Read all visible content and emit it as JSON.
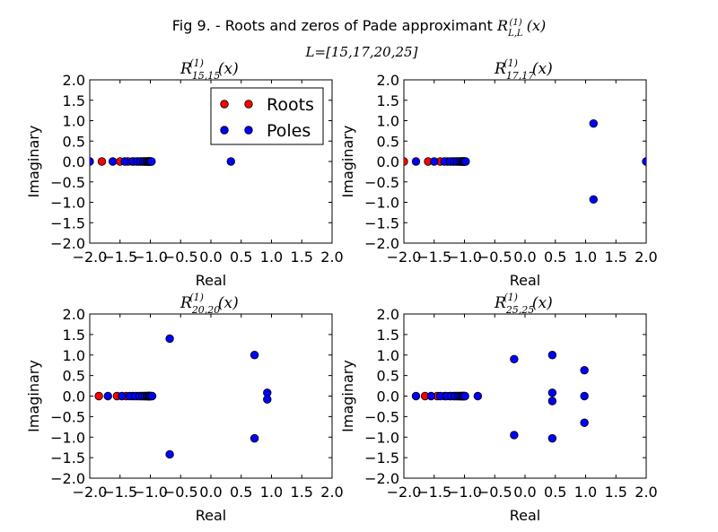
{
  "figure": {
    "title": "Fig 9. - Roots and zeros of Pade approximant R_{L,L}^{(1)}(x)",
    "subtitle": "L=[15,17,20,25]"
  },
  "colors": {
    "roots": "#ff0000",
    "poles": "#0000ff",
    "axis": "#000000"
  },
  "chart_data": [
    {
      "type": "scatter",
      "title": "R_{15,15}^{(1)}(x)",
      "xlabel": "Real",
      "ylabel": "Imaginary",
      "xlim": [
        -2.0,
        2.0
      ],
      "ylim": [
        -2.0,
        2.0
      ],
      "xticks": [
        "−2.0",
        "−1.5",
        "−1.0",
        "−0.5",
        "0.0",
        "0.5",
        "1.0",
        "1.5",
        "2.0"
      ],
      "yticks": [
        "2.0",
        "1.5",
        "1.0",
        "0.5",
        "0.0",
        "−0.5",
        "−1.0",
        "−1.5",
        "−2.0"
      ],
      "legend": {
        "position": "top-right",
        "entries": [
          "Roots",
          "Poles"
        ]
      },
      "series": [
        {
          "name": "Roots",
          "points": [
            [
              -1.8,
              0
            ],
            [
              -1.5,
              0
            ],
            [
              -1.37,
              0
            ],
            [
              -1.27,
              0
            ],
            [
              -1.2,
              0
            ],
            [
              -1.15,
              0
            ],
            [
              -1.11,
              0
            ],
            [
              -1.08,
              0
            ],
            [
              -1.06,
              0
            ],
            [
              -1.04,
              0
            ],
            [
              -1.03,
              0
            ],
            [
              -1.02,
              0
            ],
            [
              -1.01,
              0
            ],
            [
              -1.0,
              0
            ]
          ]
        },
        {
          "name": "Poles",
          "points": [
            [
              -2.0,
              0
            ],
            [
              -1.62,
              0
            ],
            [
              -1.42,
              0
            ],
            [
              -1.3,
              0
            ],
            [
              -1.22,
              0
            ],
            [
              -1.17,
              0
            ],
            [
              -1.12,
              0
            ],
            [
              -1.09,
              0
            ],
            [
              -1.06,
              0
            ],
            [
              -1.04,
              0
            ],
            [
              -1.02,
              0
            ],
            [
              -1.01,
              0
            ],
            [
              -1.0,
              0
            ],
            [
              -0.98,
              0
            ],
            [
              0.33,
              0
            ]
          ]
        }
      ]
    },
    {
      "type": "scatter",
      "title": "R_{17,17}^{(1)}(x)",
      "xlabel": "Real",
      "ylabel": "Imaginary",
      "xlim": [
        -2.0,
        2.0
      ],
      "ylim": [
        -2.0,
        2.0
      ],
      "xticks": [
        "−2.0",
        "−1.5",
        "−1.0",
        "−0.5",
        "0.0",
        "0.5",
        "1.0",
        "1.5",
        "2.0"
      ],
      "yticks": [
        "2.0",
        "1.5",
        "1.0",
        "0.5",
        "0.0",
        "−0.5",
        "−1.0",
        "−1.5",
        "−2.0"
      ],
      "series": [
        {
          "name": "Roots",
          "points": [
            [
              -2.0,
              0
            ],
            [
              -1.6,
              0
            ],
            [
              -1.4,
              0
            ],
            [
              -1.28,
              0
            ],
            [
              -1.2,
              0
            ],
            [
              -1.14,
              0
            ],
            [
              -1.1,
              0
            ],
            [
              -1.07,
              0
            ],
            [
              -1.05,
              0
            ],
            [
              -1.03,
              0
            ],
            [
              -1.02,
              0
            ],
            [
              -1.01,
              0
            ],
            [
              -1.0,
              0
            ]
          ]
        },
        {
          "name": "Poles",
          "points": [
            [
              -1.8,
              0
            ],
            [
              -1.5,
              0
            ],
            [
              -1.33,
              0
            ],
            [
              -1.24,
              0
            ],
            [
              -1.17,
              0
            ],
            [
              -1.12,
              0
            ],
            [
              -1.08,
              0
            ],
            [
              -1.05,
              0
            ],
            [
              -1.03,
              0
            ],
            [
              -1.01,
              0
            ],
            [
              -1.0,
              0
            ],
            [
              -0.98,
              0
            ],
            [
              1.13,
              0.93
            ],
            [
              1.13,
              -0.93
            ],
            [
              2.0,
              0
            ]
          ]
        }
      ]
    },
    {
      "type": "scatter",
      "title": "R_{20,20}^{(1)}(x)",
      "xlabel": "Real",
      "ylabel": "Imaginary",
      "xlim": [
        -2.0,
        2.0
      ],
      "ylim": [
        -2.0,
        2.0
      ],
      "xticks": [
        "−2.0",
        "−1.5",
        "−1.0",
        "−0.5",
        "0.0",
        "0.5",
        "1.0",
        "1.5",
        "2.0"
      ],
      "yticks": [
        "2.0",
        "1.5",
        "1.0",
        "0.5",
        "0.0",
        "−0.5",
        "−1.0",
        "−1.5",
        "−2.0"
      ],
      "series": [
        {
          "name": "Roots",
          "points": [
            [
              -1.85,
              0
            ],
            [
              -1.55,
              0
            ],
            [
              -1.4,
              0
            ],
            [
              -1.29,
              0
            ],
            [
              -1.21,
              0
            ],
            [
              -1.15,
              0
            ],
            [
              -1.11,
              0
            ],
            [
              -1.08,
              0
            ],
            [
              -1.06,
              0
            ],
            [
              -1.04,
              0
            ],
            [
              -1.03,
              0
            ],
            [
              -1.02,
              0
            ],
            [
              -1.01,
              0
            ],
            [
              -1.0,
              0
            ]
          ]
        },
        {
          "name": "Poles",
          "points": [
            [
              -1.7,
              0
            ],
            [
              -1.47,
              0
            ],
            [
              -1.34,
              0
            ],
            [
              -1.25,
              0
            ],
            [
              -1.18,
              0
            ],
            [
              -1.13,
              0
            ],
            [
              -1.09,
              0
            ],
            [
              -1.06,
              0
            ],
            [
              -1.04,
              0
            ],
            [
              -1.02,
              0
            ],
            [
              -1.01,
              0
            ],
            [
              -0.99,
              0
            ],
            [
              -0.97,
              0
            ],
            [
              -0.68,
              1.4
            ],
            [
              -0.68,
              -1.42
            ],
            [
              0.72,
              1.0
            ],
            [
              0.72,
              -1.03
            ],
            [
              0.93,
              0.08
            ],
            [
              0.93,
              -0.08
            ]
          ]
        }
      ]
    },
    {
      "type": "scatter",
      "title": "R_{25,25}^{(1)}(x)",
      "xlabel": "Real",
      "ylabel": "Imaginary",
      "xlim": [
        -2.0,
        2.0
      ],
      "ylim": [
        -2.0,
        2.0
      ],
      "xticks": [
        "−2.0",
        "−1.5",
        "−1.0",
        "−0.5",
        "0.0",
        "0.5",
        "1.0",
        "1.5",
        "2.0"
      ],
      "yticks": [
        "2.0",
        "1.5",
        "1.0",
        "0.5",
        "0.0",
        "−0.5",
        "−1.0",
        "−1.5",
        "−2.0"
      ],
      "series": [
        {
          "name": "Roots",
          "points": [
            [
              -1.65,
              0
            ],
            [
              -1.45,
              0
            ],
            [
              -1.33,
              0
            ],
            [
              -1.24,
              0
            ],
            [
              -1.18,
              0
            ],
            [
              -1.13,
              0
            ],
            [
              -1.09,
              0
            ],
            [
              -1.06,
              0
            ],
            [
              -1.04,
              0
            ],
            [
              -1.02,
              0
            ],
            [
              -1.01,
              0
            ],
            [
              -1.0,
              0
            ]
          ]
        },
        {
          "name": "Poles",
          "points": [
            [
              -1.8,
              0
            ],
            [
              -1.55,
              0
            ],
            [
              -1.4,
              0
            ],
            [
              -1.3,
              0
            ],
            [
              -1.22,
              0
            ],
            [
              -1.16,
              0
            ],
            [
              -1.11,
              0
            ],
            [
              -1.08,
              0
            ],
            [
              -1.05,
              0
            ],
            [
              -1.03,
              0
            ],
            [
              -1.01,
              0
            ],
            [
              -0.99,
              0
            ],
            [
              -0.78,
              0
            ],
            [
              -0.18,
              0.9
            ],
            [
              -0.18,
              -0.95
            ],
            [
              0.45,
              1.0
            ],
            [
              0.45,
              0.08
            ],
            [
              0.45,
              -0.12
            ],
            [
              0.45,
              -1.03
            ],
            [
              0.98,
              0.63
            ],
            [
              0.98,
              0.0
            ],
            [
              0.98,
              -0.65
            ]
          ]
        }
      ]
    }
  ]
}
